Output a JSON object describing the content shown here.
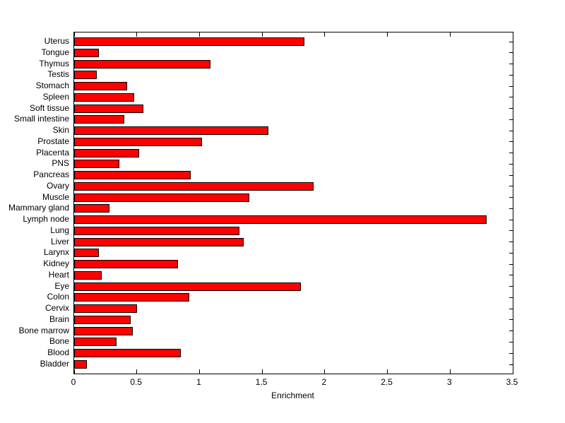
{
  "figure": {
    "background": "#ffffff",
    "text_color": "#000000"
  },
  "chart_data": {
    "type": "bar",
    "orientation": "horizontal",
    "title": "",
    "xlabel": "Enrichment",
    "ylabel": "",
    "xlim": [
      0,
      3.5
    ],
    "xticks": [
      0,
      0.5,
      1,
      1.5,
      2,
      2.5,
      3,
      3.5
    ],
    "xtick_labels": [
      "0",
      "0.5",
      "1",
      "1.5",
      "2",
      "2.5",
      "3",
      "3.5"
    ],
    "grid": false,
    "legend": null,
    "bar_color": "#ff0000",
    "bar_edge_color": "#000000",
    "axis_color": "#000000",
    "categories_top_to_bottom": [
      "Uterus",
      "Tongue",
      "Thymus",
      "Testis",
      "Stomach",
      "Spleen",
      "Soft tissue",
      "Small intestine",
      "Skin",
      "Prostate",
      "Placenta",
      "PNS",
      "Pancreas",
      "Ovary",
      "Muscle",
      "Mammary gland",
      "Lymph node",
      "Lung",
      "Liver",
      "Larynx",
      "Kidney",
      "Heart",
      "Eye",
      "Colon",
      "Cervix",
      "Brain",
      "Bone marrow",
      "Bone",
      "Blood",
      "Bladder"
    ],
    "values": [
      1.84,
      0.2,
      1.09,
      0.18,
      0.42,
      0.48,
      0.55,
      0.4,
      1.55,
      1.02,
      0.52,
      0.36,
      0.93,
      1.91,
      1.4,
      0.28,
      3.29,
      1.32,
      1.35,
      0.2,
      0.83,
      0.22,
      1.81,
      0.92,
      0.5,
      0.45,
      0.47,
      0.34,
      0.85,
      0.1
    ]
  }
}
